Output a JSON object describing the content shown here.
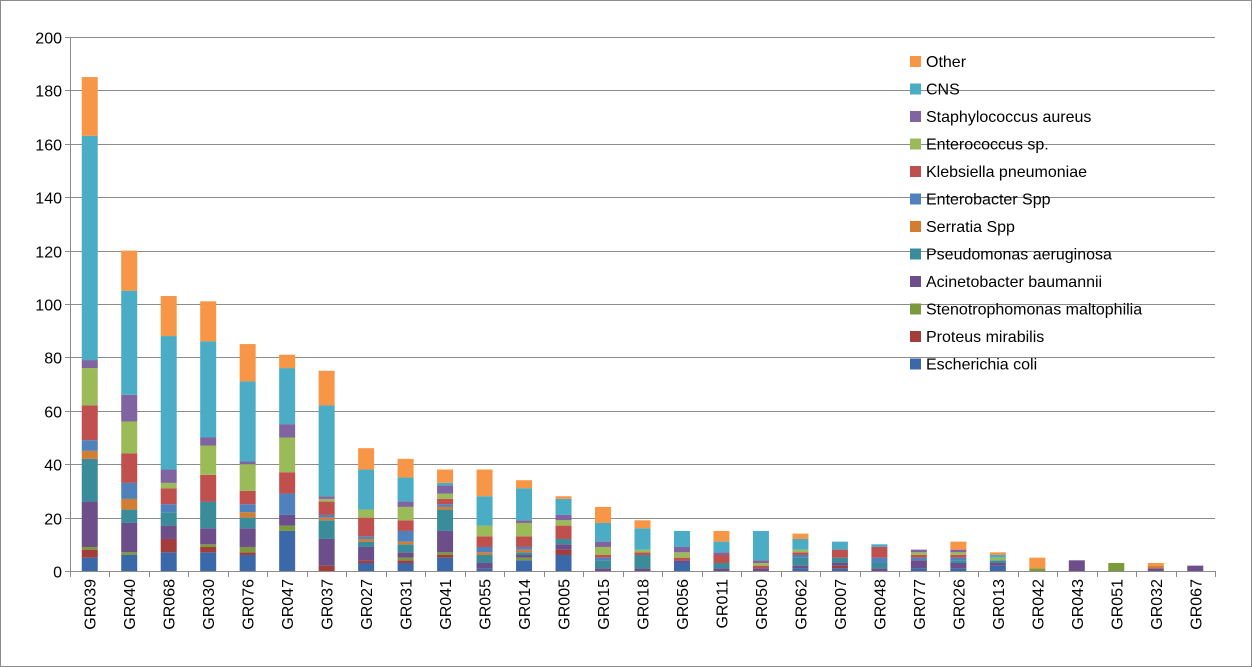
{
  "chart_data": {
    "type": "bar",
    "stacked": true,
    "title": "",
    "xlabel": "",
    "ylabel": "",
    "ylim": [
      0,
      200
    ],
    "yticks": [
      0,
      20,
      40,
      60,
      80,
      100,
      120,
      140,
      160,
      180,
      200
    ],
    "grid": "horizontal",
    "legend_position": "top-right",
    "categories": [
      "GR039",
      "GR040",
      "GR068",
      "GR030",
      "GR076",
      "GR047",
      "GR037",
      "GR027",
      "GR031",
      "GR041",
      "GR055",
      "GR014",
      "GR005",
      "GR015",
      "GR018",
      "GR056",
      "GR011",
      "GR050",
      "GR062",
      "GR007",
      "GR048",
      "GR077",
      "GR026",
      "GR013",
      "GR042",
      "GR043",
      "GR051",
      "GR032",
      "GR067"
    ],
    "series": [
      {
        "name": "Escherichia coli",
        "color": "#3b68a8",
        "values": [
          5,
          6,
          7,
          7,
          6,
          15,
          0,
          3,
          3,
          5,
          1,
          4,
          6,
          0,
          0,
          3,
          0,
          0,
          1,
          1,
          0,
          1,
          1,
          2,
          0,
          0,
          0,
          0,
          0
        ]
      },
      {
        "name": "Proteus mirabilis",
        "color": "#a33d3b",
        "values": [
          3,
          0,
          5,
          2,
          1,
          0,
          2,
          1,
          1,
          1,
          0,
          0,
          2,
          0,
          0,
          0,
          0,
          0,
          0,
          1,
          0,
          0,
          0,
          0,
          0,
          0,
          0,
          0,
          0
        ]
      },
      {
        "name": "Stenotrophomonas maltophilia",
        "color": "#7b9a3d",
        "values": [
          1,
          1,
          0,
          1,
          2,
          2,
          0,
          0,
          1,
          1,
          0,
          1,
          0,
          0,
          0,
          0,
          0,
          0,
          0,
          0,
          0,
          0,
          0,
          0,
          1,
          0,
          3,
          0,
          0
        ]
      },
      {
        "name": "Acinetobacter baumannii",
        "color": "#6b4e8a",
        "values": [
          17,
          11,
          5,
          6,
          7,
          4,
          10,
          5,
          2,
          8,
          2,
          1,
          2,
          1,
          1,
          1,
          1,
          1,
          1,
          1,
          1,
          3,
          2,
          1,
          0,
          4,
          0,
          1,
          2
        ]
      },
      {
        "name": "Pseudomonas aeruginosa",
        "color": "#3a8c9b",
        "values": [
          16,
          5,
          5,
          10,
          4,
          0,
          7,
          2,
          3,
          8,
          3,
          1,
          2,
          3,
          5,
          0,
          2,
          0,
          3,
          2,
          2,
          0,
          1,
          1,
          0,
          0,
          0,
          0,
          0
        ]
      },
      {
        "name": "Serratia Spp",
        "color": "#d27d32",
        "values": [
          3,
          4,
          0,
          0,
          2,
          0,
          1,
          1,
          1,
          1,
          1,
          1,
          0,
          0,
          0,
          0,
          0,
          0,
          0,
          0,
          0,
          0,
          0,
          0,
          0,
          0,
          0,
          1,
          0
        ]
      },
      {
        "name": "Enterobacter Spp",
        "color": "#4f81bd",
        "values": [
          4,
          6,
          3,
          0,
          3,
          8,
          1,
          1,
          4,
          1,
          2,
          1,
          0,
          1,
          0,
          0,
          0,
          0,
          1,
          0,
          2,
          1,
          1,
          0,
          0,
          0,
          0,
          0,
          0
        ]
      },
      {
        "name": "Klebsiella pneumoniae",
        "color": "#c0504d",
        "values": [
          13,
          11,
          6,
          10,
          5,
          8,
          5,
          7,
          4,
          2,
          4,
          4,
          5,
          1,
          1,
          1,
          3,
          1,
          1,
          3,
          4,
          1,
          1,
          0,
          0,
          0,
          0,
          0,
          0
        ]
      },
      {
        "name": "Enterococcus sp.",
        "color": "#9bbb59",
        "values": [
          14,
          12,
          2,
          11,
          10,
          13,
          1,
          3,
          5,
          2,
          4,
          5,
          2,
          3,
          1,
          2,
          0,
          1,
          1,
          0,
          0,
          1,
          1,
          1,
          0,
          0,
          0,
          0,
          0
        ]
      },
      {
        "name": "Staphylococcus aureus",
        "color": "#8064a2",
        "values": [
          3,
          10,
          5,
          3,
          1,
          5,
          1,
          0,
          2,
          3,
          0,
          1,
          2,
          2,
          0,
          2,
          1,
          1,
          0,
          0,
          0,
          1,
          1,
          0,
          0,
          0,
          0,
          0,
          0
        ]
      },
      {
        "name": "CNS",
        "color": "#4bacc6",
        "values": [
          84,
          39,
          50,
          36,
          30,
          21,
          34,
          15,
          9,
          1,
          11,
          12,
          6,
          7,
          8,
          6,
          4,
          11,
          4,
          3,
          1,
          0,
          0,
          1,
          0,
          0,
          0,
          0,
          0
        ]
      },
      {
        "name": "Other",
        "color": "#f79646",
        "values": [
          22,
          15,
          15,
          15,
          14,
          5,
          13,
          8,
          7,
          5,
          10,
          3,
          1,
          6,
          3,
          0,
          4,
          0,
          2,
          0,
          0,
          0,
          3,
          1,
          4,
          0,
          0,
          1,
          0
        ]
      }
    ]
  }
}
